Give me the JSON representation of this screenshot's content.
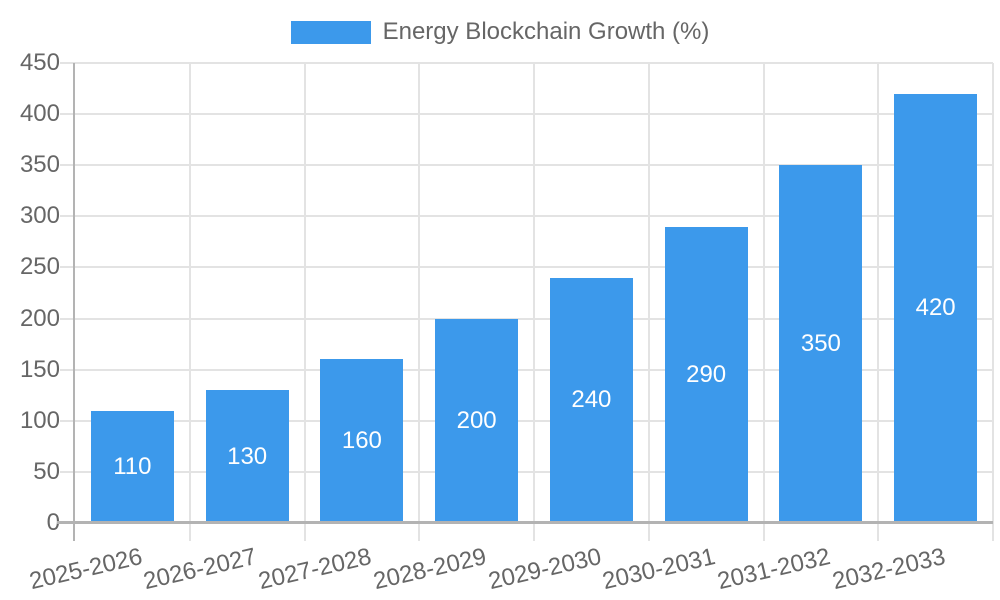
{
  "chart_data": {
    "type": "bar",
    "title": "",
    "legend_label": "Energy Blockchain Growth (%)",
    "legend_position": "top",
    "categories": [
      "2025-2026",
      "2026-2027",
      "2027-2028",
      "2028-2029",
      "2029-2030",
      "2030-2031",
      "2031-2032",
      "2032-2033"
    ],
    "values": [
      110,
      130,
      160,
      200,
      240,
      290,
      350,
      420
    ],
    "value_labels": [
      "110",
      "130",
      "160",
      "200",
      "240",
      "290",
      "350",
      "420"
    ],
    "xlabel": "",
    "ylabel": "",
    "ylim": [
      0,
      450
    ],
    "yticks": [
      0,
      50,
      100,
      150,
      200,
      250,
      300,
      350,
      400,
      450
    ],
    "grid": true,
    "colors": {
      "bar": "#3C99EB",
      "value_label": "#FFFFFF",
      "text": "#666666",
      "grid": "#E3E3E3",
      "axis": "#B3B3B3",
      "background": "#FFFFFF"
    }
  }
}
